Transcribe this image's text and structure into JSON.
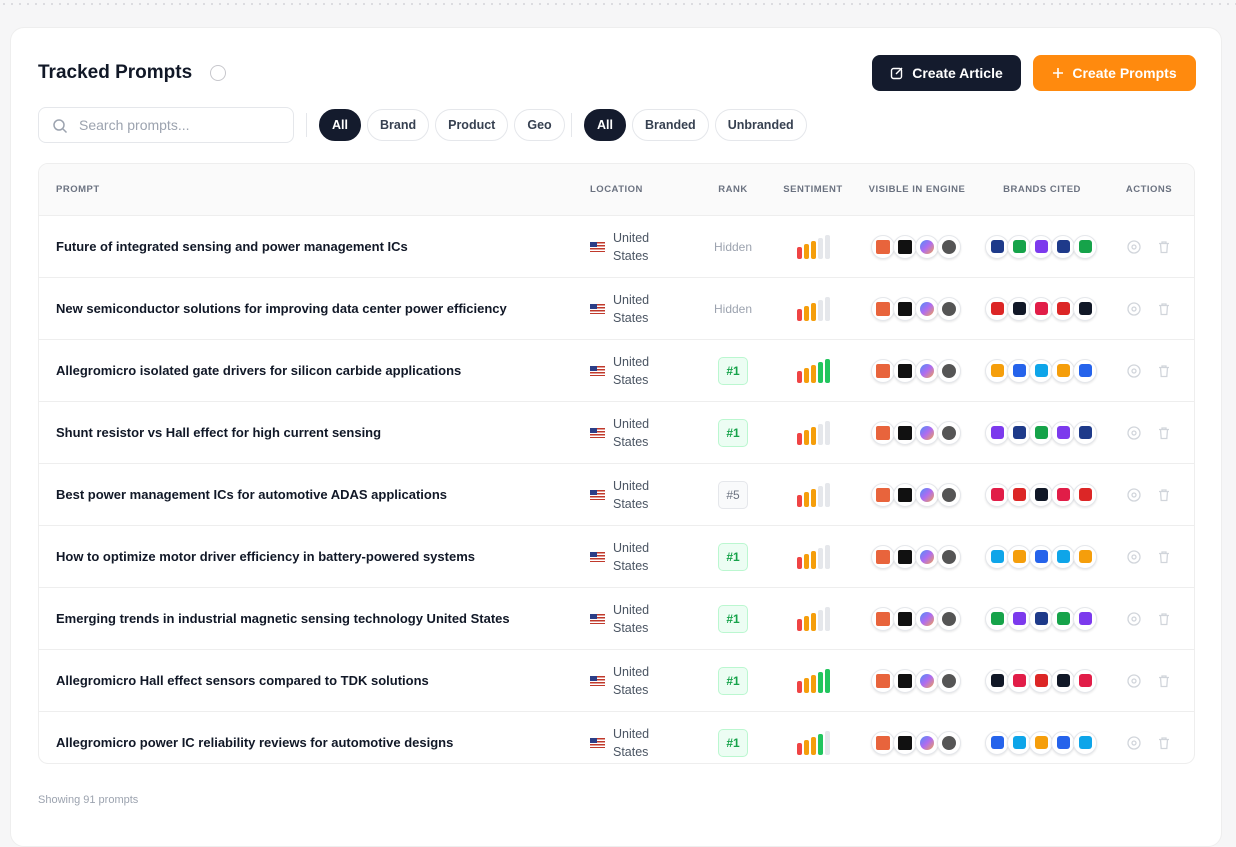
{
  "header": {
    "title": "Tracked Prompts",
    "buttons": [
      "Create Article",
      "Create Prompts"
    ]
  },
  "search": {
    "placeholder": "Search prompts..."
  },
  "filters": {
    "type": [
      "All",
      "Brand",
      "Product",
      "Geo"
    ],
    "branding": [
      "All",
      "Branded",
      "Unbranded"
    ]
  },
  "table": {
    "columns": [
      "PROMPT",
      "LOCATION",
      "RANK",
      "SENTIMENT",
      "VISIBLE IN ENGINE",
      "BRANDS CITED",
      "ACTIONS"
    ],
    "rows": [
      {
        "prompt": "Future of integrated sensing and power management ICs",
        "location": "United States",
        "rank": "Hidden",
        "sentiment": 3
      },
      {
        "prompt": "New semiconductor solutions for improving data center power efficiency",
        "location": "United States",
        "rank": "Hidden",
        "sentiment": 3
      },
      {
        "prompt": "Allegromicro isolated gate drivers for silicon carbide applications",
        "location": "United States",
        "rank": "#1",
        "sentiment": 5
      },
      {
        "prompt": "Shunt resistor vs Hall effect for high current sensing",
        "location": "United States",
        "rank": "#1",
        "sentiment": 3
      },
      {
        "prompt": "Best power management ICs for automotive ADAS applications",
        "location": "United States",
        "rank": "#5",
        "sentiment": 3
      },
      {
        "prompt": "How to optimize motor driver efficiency in battery-powered systems",
        "location": "United States",
        "rank": "#1",
        "sentiment": 3
      },
      {
        "prompt": "Emerging trends in industrial magnetic sensing technology United States",
        "location": "United States",
        "rank": "#1",
        "sentiment": 3
      },
      {
        "prompt": "Allegromicro Hall effect sensors compared to TDK solutions",
        "location": "United States",
        "rank": "#1",
        "sentiment": 5
      },
      {
        "prompt": "Allegromicro power IC reliability reviews for automotive designs",
        "location": "United States",
        "rank": "#1",
        "sentiment": 4
      }
    ]
  },
  "footer": "Showing 91 prompts"
}
